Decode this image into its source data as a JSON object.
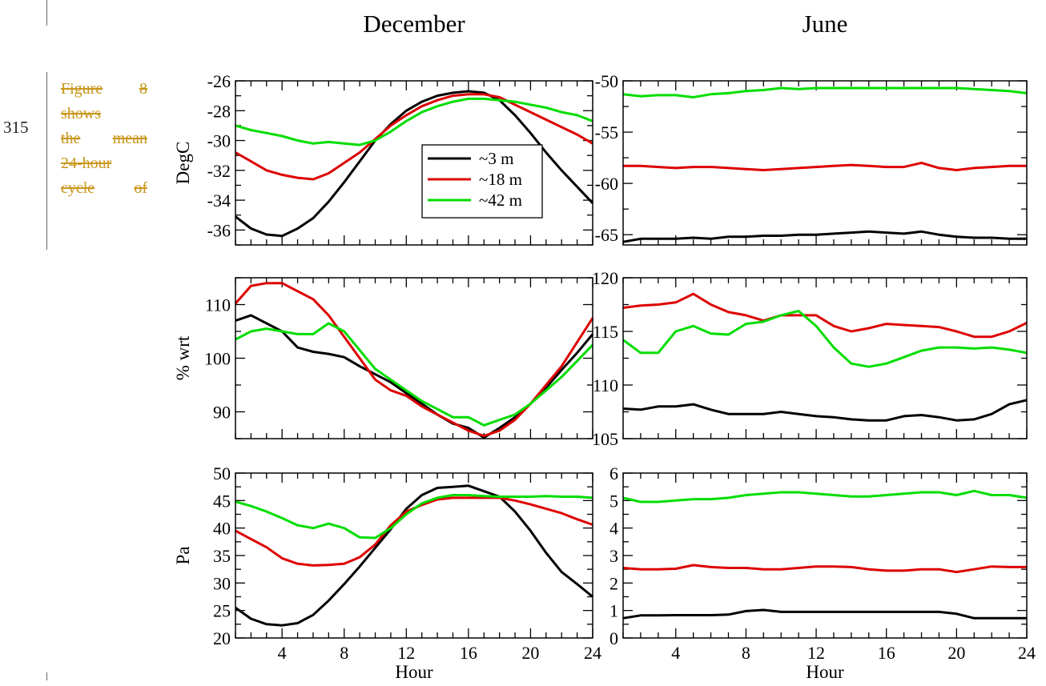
{
  "line_number": "315",
  "margin_text": {
    "lines": [
      [
        "Figure",
        "8"
      ],
      [
        "shows"
      ],
      [
        "the",
        "mean"
      ],
      [
        "24-hour"
      ],
      [
        "cycle",
        "of"
      ]
    ]
  },
  "colors": {
    "3m": "#000000",
    "18m": "#dd0000",
    "42m": "#00dd00",
    "margin_text": "#c8961a"
  },
  "chart_data": {
    "type": "line",
    "column_titles": [
      "December",
      "June"
    ],
    "xlabel": "Hour",
    "x_ticks": [
      4,
      8,
      12,
      16,
      20,
      24
    ],
    "xlim": [
      1,
      24
    ],
    "legend": {
      "placement": "inside top-left panel, center",
      "entries": [
        "~3 m",
        "~18 m",
        "~42 m"
      ]
    },
    "x": [
      1,
      2,
      3,
      4,
      5,
      6,
      7,
      8,
      9,
      10,
      11,
      12,
      13,
      14,
      15,
      16,
      17,
      18,
      19,
      20,
      21,
      22,
      23,
      24
    ],
    "panels": [
      {
        "row": 0,
        "col": 0,
        "ylabel": "DegC",
        "ylim": [
          -37,
          -26
        ],
        "yticks": [
          -36,
          -34,
          -32,
          -30,
          -28,
          -26
        ],
        "series": [
          {
            "name": "~3 m",
            "values": [
              -35.1,
              -35.9,
              -36.3,
              -36.4,
              -35.9,
              -35.2,
              -34.1,
              -32.8,
              -31.4,
              -30.0,
              -28.9,
              -28.0,
              -27.4,
              -27.0,
              -26.8,
              -26.7,
              -26.8,
              -27.3,
              -28.3,
              -29.5,
              -30.8,
              -32.0,
              -33.1,
              -34.2
            ]
          },
          {
            "name": "~18 m",
            "values": [
              -30.8,
              -31.4,
              -32.0,
              -32.3,
              -32.5,
              -32.6,
              -32.2,
              -31.5,
              -30.8,
              -29.9,
              -29.0,
              -28.3,
              -27.7,
              -27.3,
              -27.0,
              -26.9,
              -26.9,
              -27.1,
              -27.6,
              -28.1,
              -28.6,
              -29.1,
              -29.6,
              -30.2
            ]
          },
          {
            "name": "~42 m",
            "values": [
              -29.0,
              -29.3,
              -29.5,
              -29.7,
              -30.0,
              -30.2,
              -30.1,
              -30.2,
              -30.3,
              -30.0,
              -29.4,
              -28.7,
              -28.1,
              -27.7,
              -27.4,
              -27.2,
              -27.2,
              -27.3,
              -27.4,
              -27.6,
              -27.8,
              -28.1,
              -28.3,
              -28.7
            ]
          }
        ]
      },
      {
        "row": 0,
        "col": 1,
        "ylabel": "",
        "ylim": [
          -66,
          -50
        ],
        "yticks": [
          -65,
          -60,
          -55,
          -50
        ],
        "series": [
          {
            "name": "~3 m",
            "values": [
              -65.7,
              -65.4,
              -65.4,
              -65.4,
              -65.3,
              -65.4,
              -65.2,
              -65.2,
              -65.1,
              -65.1,
              -65.0,
              -65.0,
              -64.9,
              -64.8,
              -64.7,
              -64.8,
              -64.9,
              -64.7,
              -65.0,
              -65.2,
              -65.3,
              -65.3,
              -65.4,
              -65.4
            ]
          },
          {
            "name": "~18 m",
            "values": [
              -58.3,
              -58.3,
              -58.4,
              -58.5,
              -58.4,
              -58.4,
              -58.5,
              -58.6,
              -58.7,
              -58.6,
              -58.5,
              -58.4,
              -58.3,
              -58.2,
              -58.3,
              -58.4,
              -58.4,
              -58.0,
              -58.5,
              -58.7,
              -58.5,
              -58.4,
              -58.3,
              -58.3
            ]
          },
          {
            "name": "~42 m",
            "values": [
              -51.3,
              -51.5,
              -51.4,
              -51.4,
              -51.6,
              -51.3,
              -51.2,
              -51.0,
              -50.9,
              -50.7,
              -50.8,
              -50.7,
              -50.7,
              -50.7,
              -50.7,
              -50.7,
              -50.7,
              -50.7,
              -50.7,
              -50.7,
              -50.8,
              -50.9,
              -51.0,
              -51.2
            ]
          }
        ]
      },
      {
        "row": 1,
        "col": 0,
        "ylabel": "% wrt",
        "ylim": [
          85,
          115
        ],
        "yticks": [
          90,
          100,
          110
        ],
        "series": [
          {
            "name": "~3 m",
            "values": [
              107,
              108,
              106.5,
              105,
              102,
              101.2,
              100.8,
              100.2,
              98.5,
              97,
              95.5,
              93.5,
              91.5,
              89.5,
              87.8,
              87,
              85.2,
              87,
              89,
              91.5,
              94.5,
              97.8,
              101,
              104.5
            ]
          },
          {
            "name": "~18 m",
            "values": [
              110.2,
              113.5,
              114,
              114,
              112.5,
              111,
              108,
              104,
              100,
              96,
              94,
              93,
              91,
              89.5,
              88,
              86.5,
              85.5,
              86.5,
              88.5,
              91.5,
              95,
              98.5,
              103,
              107.5
            ]
          },
          {
            "name": "~42 m",
            "values": [
              103.5,
              105,
              105.5,
              105,
              104.5,
              104.5,
              106.5,
              105,
              101.5,
              98,
              96,
              94,
              92,
              90.5,
              89,
              89,
              87.5,
              88.5,
              89.5,
              91.5,
              94,
              96.5,
              99.5,
              102.5
            ]
          }
        ]
      },
      {
        "row": 1,
        "col": 1,
        "ylabel": "",
        "ylim": [
          105,
          120
        ],
        "yticks": [
          105,
          110,
          115,
          120
        ],
        "series": [
          {
            "name": "~3 m",
            "values": [
              107.8,
              107.7,
              108,
              108,
              108.2,
              107.7,
              107.3,
              107.3,
              107.3,
              107.5,
              107.3,
              107.1,
              107,
              106.8,
              106.7,
              106.7,
              107.1,
              107.2,
              107,
              106.7,
              106.8,
              107.3,
              108.2,
              108.6
            ]
          },
          {
            "name": "~18 m",
            "values": [
              117.2,
              117.4,
              117.5,
              117.7,
              118.5,
              117.5,
              116.8,
              116.5,
              116.0,
              116.5,
              116.5,
              116.5,
              115.5,
              115.0,
              115.3,
              115.7,
              115.6,
              115.5,
              115.4,
              115.0,
              114.5,
              114.5,
              115.0,
              115.8
            ]
          },
          {
            "name": "~42 m",
            "values": [
              114.2,
              113.0,
              113.0,
              115.0,
              115.5,
              114.8,
              114.7,
              115.7,
              115.9,
              116.5,
              116.9,
              115.5,
              113.5,
              112.0,
              111.7,
              112.0,
              112.6,
              113.2,
              113.5,
              113.5,
              113.4,
              113.5,
              113.3,
              113.0
            ]
          }
        ]
      },
      {
        "row": 2,
        "col": 0,
        "ylabel": "Pa",
        "ylim": [
          20,
          50
        ],
        "yticks": [
          20,
          25,
          30,
          35,
          40,
          45,
          50
        ],
        "series": [
          {
            "name": "~3 m",
            "values": [
              25.5,
              23.5,
              22.5,
              22.3,
              22.7,
              24.2,
              26.8,
              29.8,
              33.0,
              36.4,
              39.8,
              43.5,
              46.0,
              47.3,
              47.5,
              47.7,
              46.7,
              45.7,
              43.0,
              39.5,
              35.5,
              32.0,
              29.8,
              27.5
            ]
          },
          {
            "name": "~18 m",
            "values": [
              39.5,
              38.0,
              36.5,
              34.5,
              33.5,
              33.2,
              33.3,
              33.5,
              34.7,
              37.0,
              40.5,
              43.0,
              44.2,
              45.2,
              45.5,
              45.5,
              45.5,
              45.5,
              45.0,
              44.3,
              43.5,
              42.7,
              41.6,
              40.6
            ]
          },
          {
            "name": "~42 m",
            "values": [
              44.8,
              44.0,
              43.0,
              41.8,
              40.5,
              40.0,
              40.8,
              40.0,
              38.3,
              38.2,
              40.0,
              42.5,
              44.5,
              45.5,
              46.0,
              46.0,
              45.8,
              45.7,
              45.7,
              45.7,
              45.8,
              45.7,
              45.7,
              45.5
            ]
          }
        ]
      },
      {
        "row": 2,
        "col": 1,
        "ylabel": "",
        "ylim": [
          0,
          6
        ],
        "yticks": [
          0,
          1,
          2,
          3,
          4,
          5,
          6
        ],
        "series": [
          {
            "name": "~3 m",
            "values": [
              0.72,
              0.82,
              0.82,
              0.83,
              0.83,
              0.83,
              0.85,
              0.98,
              1.02,
              0.95,
              0.95,
              0.95,
              0.95,
              0.95,
              0.95,
              0.95,
              0.95,
              0.95,
              0.95,
              0.88,
              0.72,
              0.72,
              0.72,
              0.72
            ]
          },
          {
            "name": "~18 m",
            "values": [
              2.55,
              2.5,
              2.5,
              2.52,
              2.65,
              2.58,
              2.55,
              2.55,
              2.5,
              2.5,
              2.55,
              2.6,
              2.6,
              2.58,
              2.5,
              2.45,
              2.45,
              2.5,
              2.5,
              2.4,
              2.5,
              2.6,
              2.58,
              2.58
            ]
          },
          {
            "name": "~42 m",
            "values": [
              5.1,
              4.95,
              4.95,
              5.0,
              5.05,
              5.05,
              5.1,
              5.2,
              5.25,
              5.3,
              5.3,
              5.25,
              5.2,
              5.15,
              5.15,
              5.2,
              5.25,
              5.3,
              5.3,
              5.2,
              5.35,
              5.2,
              5.2,
              5.1
            ]
          }
        ]
      }
    ]
  }
}
